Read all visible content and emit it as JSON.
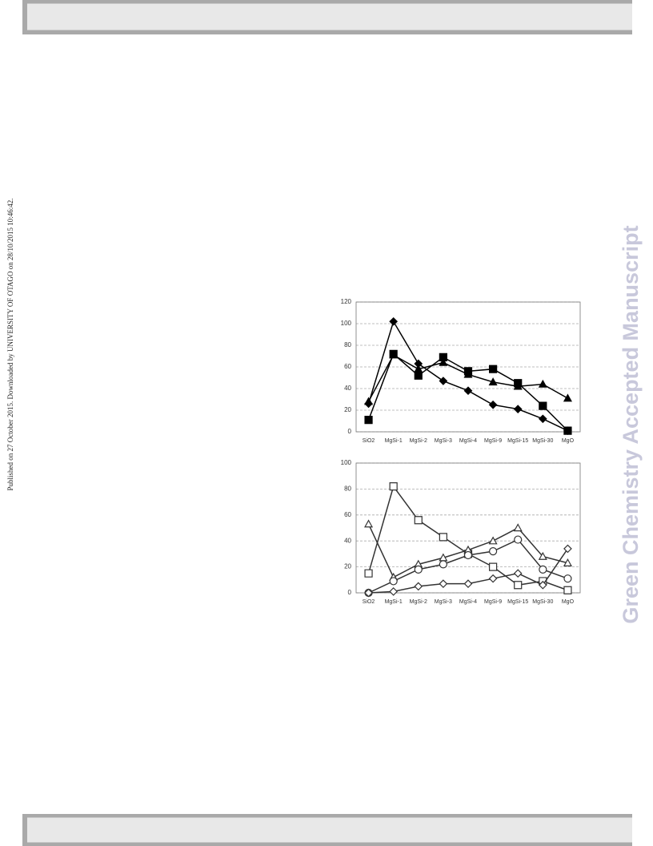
{
  "side_note": "Published on 27 October 2015. Downloaded by UNIVERSITY OF OTAGO on 28/10/2015 10:46:42.",
  "watermark": "Green Chemistry Accepted Manuscript",
  "chart_data": [
    {
      "type": "line",
      "categories": [
        "SiO2",
        "MgSi-1",
        "MgSi-2",
        "MgSi-3",
        "MgSi-4",
        "MgSi-9",
        "MgSi-15",
        "MgSi-30",
        "MgO"
      ],
      "ylim": [
        0,
        120
      ],
      "yticks": [
        0,
        20,
        40,
        60,
        80,
        100,
        120
      ],
      "grid": true,
      "series": [
        {
          "color": "#000000",
          "marker": "diamond",
          "filled": true,
          "values": [
            26,
            102,
            63,
            47,
            38,
            25,
            21,
            12,
            1
          ]
        },
        {
          "color": "#000000",
          "marker": "square",
          "filled": true,
          "values": [
            11,
            72,
            52,
            69,
            56,
            58,
            45,
            24,
            1
          ]
        },
        {
          "color": "#000000",
          "marker": "triangle",
          "filled": true,
          "values": [
            28,
            71,
            58,
            64,
            53,
            46,
            42,
            44,
            31
          ]
        }
      ]
    },
    {
      "type": "line",
      "categories": [
        "SiO2",
        "MgSi-1",
        "MgSi-2",
        "MgSi-3",
        "MgSi-4",
        "MgSi-9",
        "MgSi-15",
        "MgSi-30",
        "MgO"
      ],
      "ylim": [
        0,
        100
      ],
      "yticks": [
        0,
        20,
        40,
        60,
        80,
        100
      ],
      "grid": true,
      "series": [
        {
          "color": "#333333",
          "marker": "square",
          "filled": false,
          "values": [
            15,
            82,
            56,
            43,
            30,
            20,
            6,
            9,
            2
          ]
        },
        {
          "color": "#333333",
          "marker": "triangle",
          "filled": false,
          "values": [
            53,
            12,
            22,
            27,
            33,
            40,
            50,
            28,
            23
          ]
        },
        {
          "color": "#333333",
          "marker": "circle",
          "filled": false,
          "values": [
            0,
            9,
            18,
            22,
            29,
            32,
            41,
            18,
            11
          ]
        },
        {
          "color": "#333333",
          "marker": "diamond",
          "filled": false,
          "values": [
            0,
            1,
            5,
            7,
            7,
            11,
            15,
            6,
            34
          ]
        }
      ]
    }
  ]
}
